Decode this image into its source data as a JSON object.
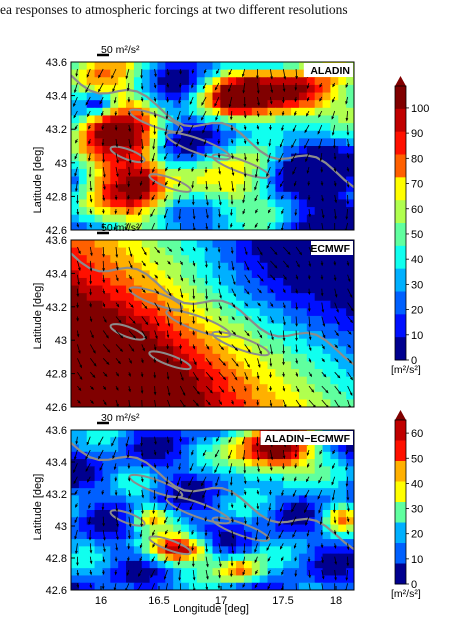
{
  "caption": "ea responses to atmospheric forcings at two different resolutions",
  "ylabel": "Latitude [deg]",
  "xlabel": "Longitude [deg]",
  "colormap": [
    "#00008f",
    "#0010ff",
    "#0060ff",
    "#00b0ff",
    "#10ffef",
    "#60ff9f",
    "#b0ff4f",
    "#ffff00",
    "#ffb000",
    "#ff6000",
    "#ff1000",
    "#c00000",
    "#800000"
  ],
  "panels": [
    {
      "id": "aladin",
      "title": "ALADIN",
      "scale_label": "50 m²/s²",
      "y_ticks": [
        "43.6",
        "43.4",
        "43.2",
        "43",
        "42.8",
        "42.6"
      ],
      "x_ticks": [],
      "colorbar": {
        "ticks": [
          "100",
          "90",
          "80",
          "70",
          "60",
          "50",
          "40",
          "30",
          "20",
          "10",
          "0"
        ],
        "unit": "[m²/s²]"
      }
    },
    {
      "id": "ecmwf",
      "title": "ECMWF",
      "scale_label": "50 m²/s²",
      "y_ticks": [
        "43.6",
        "43.4",
        "43.2",
        "43",
        "42.8",
        "42.6"
      ],
      "x_ticks": [],
      "colorbar": {
        "ticks": [],
        "unit": ""
      }
    },
    {
      "id": "diff",
      "title": "ALADIN−ECMWF",
      "scale_label": "30 m²/s²",
      "y_ticks": [
        "43.6",
        "43.4",
        "43.2",
        "43",
        "42.8",
        "42.6"
      ],
      "x_ticks": [
        "16",
        "16.5",
        "17",
        "17.5",
        "18"
      ],
      "colorbar": {
        "ticks": [
          "60",
          "50",
          "40",
          "30",
          "20",
          "10",
          "0"
        ],
        "unit": "[m²/s²]"
      }
    }
  ]
}
